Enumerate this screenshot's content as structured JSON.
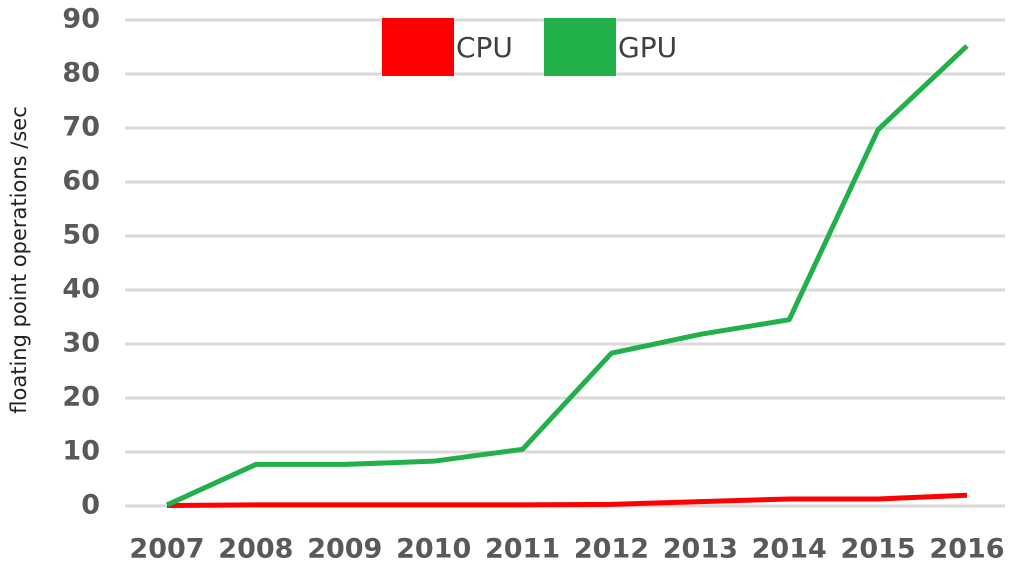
{
  "chart_data": {
    "type": "line",
    "y_label": "floating point operations /sec",
    "categories": [
      "2007",
      "2008",
      "2009",
      "2010",
      "2011",
      "2012",
      "2013",
      "2014",
      "2015",
      "2016"
    ],
    "series": [
      {
        "name": "CPU",
        "color": "#ff0000",
        "values": [
          0.1,
          0.2,
          0.2,
          0.2,
          0.2,
          0.3,
          0.8,
          1.3,
          1.3,
          2.0
        ]
      },
      {
        "name": "GPU",
        "color": "#22b04b",
        "values": [
          0.2,
          7.7,
          7.7,
          8.3,
          10.5,
          28.3,
          31.8,
          34.5,
          69.7,
          85.2
        ]
      }
    ],
    "ylim": [
      0,
      90
    ],
    "yticks": [
      0,
      10,
      20,
      30,
      40,
      50,
      60,
      70,
      80,
      90
    ],
    "grid": true
  }
}
